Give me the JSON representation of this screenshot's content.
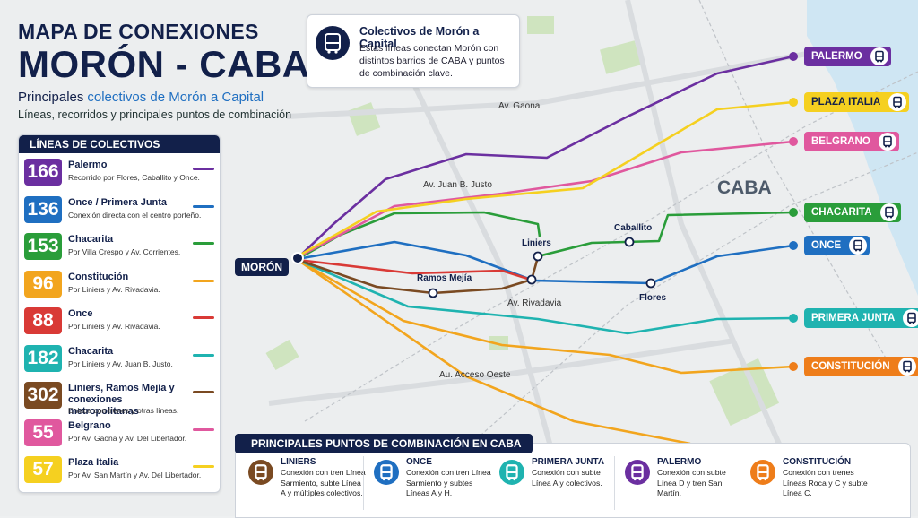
{
  "header": {
    "title_top": "MAPA DE CONEXIONES",
    "title_main": "MORÓN - CABA",
    "subtitle_prefix": "Principales",
    "subtitle_highlight": "colectivos de Morón a Capital",
    "subtitle_line2": "Líneas, recorridos y principales puntos de combinación"
  },
  "info_box": {
    "title": "Colectivos de Morón a Capital",
    "text": "Estas líneas conectan Morón con distintos barrios de CABA y puntos de combinación clave."
  },
  "legend": {
    "title": "LÍNEAS DE COLECTIVOS",
    "items": [
      {
        "line": "166",
        "name": "Palermo",
        "description": "Recorrido por Flores, Caballito y Once.",
        "color": "#6b2fa0"
      },
      {
        "line": "136",
        "name": "Once / Primera Junta",
        "description": "Conexión directa con el centro porteño.",
        "color": "#1f6fc1"
      },
      {
        "line": "153",
        "name": "Chacarita",
        "description": "Por Villa Crespo y Av. Corrientes.",
        "color": "#2a9d3a"
      },
      {
        "line": "96",
        "name": "Constitución",
        "description": "Por Liniers y Av. Rivadavia.",
        "color": "#f2a51e"
      },
      {
        "line": "88",
        "name": "Once",
        "description": "Por Liniers y Av. Rivadavia.",
        "color": "#d93a36"
      },
      {
        "line": "182",
        "name": "Chacarita",
        "description": "Por Liniers y Av. Juan B. Justo.",
        "color": "#1fb3b0"
      },
      {
        "line": "302",
        "name": "Liniers, Ramos Mejía y conexiones metropolitanas",
        "description": "Enlace con trenes y otras líneas.",
        "color": "#7a4a22"
      },
      {
        "line": "55",
        "name": "Belgrano",
        "description": "Por Av. Gaona y Av. Del Libertador.",
        "color": "#e0589e"
      },
      {
        "line": "57",
        "name": "Plaza Italia",
        "description": "Por Av. San Martín y Av. Del Libertador.",
        "color": "#f5d020"
      }
    ]
  },
  "map": {
    "origin": "MORÓN",
    "area": "CABA",
    "labels": [
      "Av. Gaona",
      "Av. Juan B. Justo",
      "Liniers",
      "Caballito",
      "Ramos Mejía",
      "Av. Rivadavia",
      "Flores",
      "Au. Acceso Oeste"
    ],
    "destinations": [
      {
        "name": "PALERMO",
        "color": "#6b2fa0"
      },
      {
        "name": "PLAZA ITALIA",
        "color": "#f5d020"
      },
      {
        "name": "BELGRANO",
        "color": "#e0589e"
      },
      {
        "name": "CHACARITA",
        "color": "#2a9d3a"
      },
      {
        "name": "ONCE",
        "color": "#1f6fc1"
      },
      {
        "name": "PRIMERA JUNTA",
        "color": "#1fb3b0"
      },
      {
        "name": "CONSTITUCIÓN",
        "color": "#ee7d1a"
      }
    ]
  },
  "combinations": {
    "title": "PRINCIPALES PUNTOS DE COMBINACIÓN EN CABA",
    "items": [
      {
        "name": "LINIERS",
        "text": "Conexión con tren Línea Sarmiento, subte Línea A y múltiples colectivos.",
        "color": "#7a4a22"
      },
      {
        "name": "ONCE",
        "text": "Conexión con tren Línea Sarmiento y subtes Líneas A y H.",
        "color": "#1f6fc1"
      },
      {
        "name": "PRIMERA JUNTA",
        "text": "Conexión con subte Línea A y colectivos.",
        "color": "#1fb3b0"
      },
      {
        "name": "PALERMO",
        "text": "Conexión con subte Línea D y tren San Martín.",
        "color": "#6b2fa0"
      },
      {
        "name": "CONSTITUCIÓN",
        "text": "Conexión con trenes Líneas Roca y C y subte Línea C.",
        "color": "#ee7d1a"
      }
    ]
  }
}
